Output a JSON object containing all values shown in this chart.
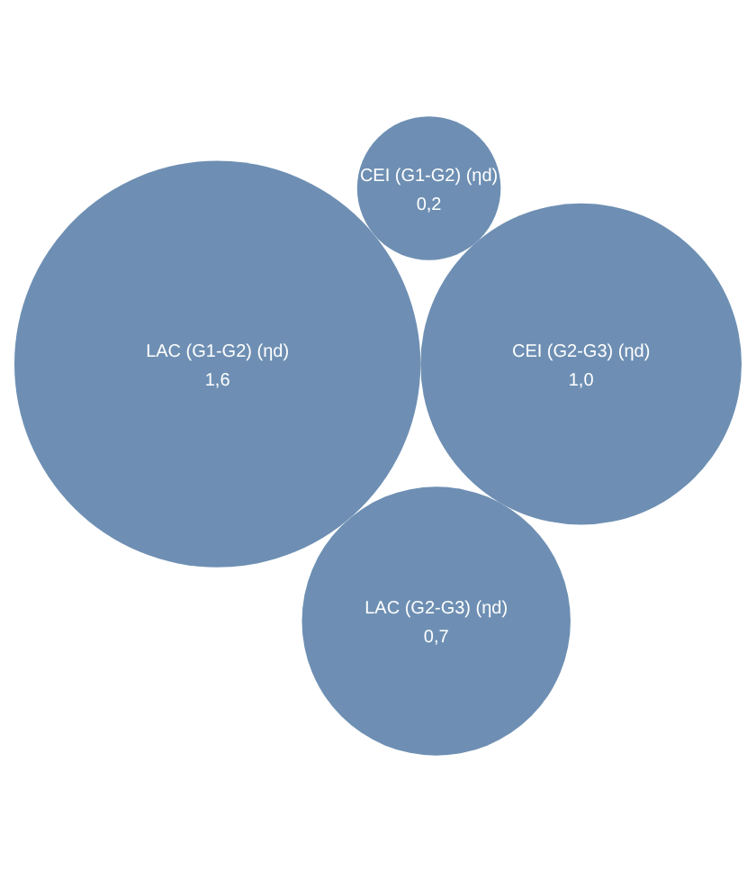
{
  "chart_data": {
    "type": "other",
    "categories": [
      "LAC (G1-G2) (ηd)",
      "CEI (G1-G2) (ηd)",
      "LAC (G2-G3) (ηd)",
      "CEI (G2-G3) (ηd)"
    ],
    "values": [
      1.6,
      0.2,
      0.7,
      1.0
    ],
    "value_labels": [
      "1,6",
      "0,2",
      "0,7",
      "1,0"
    ],
    "color": "#6e8fb3"
  }
}
